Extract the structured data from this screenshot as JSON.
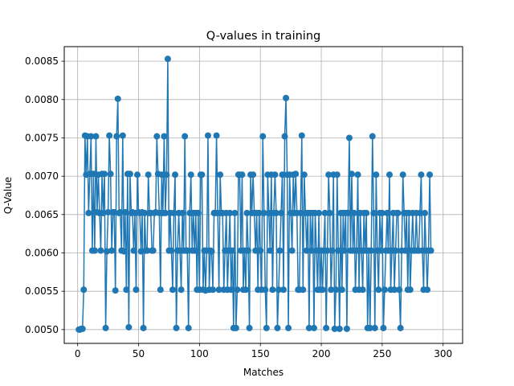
{
  "chart_data": {
    "type": "line",
    "title": "Q-values in training",
    "xlabel": "Matches",
    "ylabel": "Q-Value",
    "xlim": [
      -11,
      316
    ],
    "ylim": [
      0.00482,
      0.00869
    ],
    "grid": true,
    "x_ticks": [
      0,
      50,
      100,
      150,
      200,
      250,
      300
    ],
    "x_tick_labels": [
      "0",
      "50",
      "100",
      "150",
      "200",
      "250",
      "300"
    ],
    "y_ticks": [
      0.005,
      0.0055,
      0.006,
      0.0065,
      0.007,
      0.0075,
      0.008,
      0.0085
    ],
    "y_tick_labels": [
      "0.0050",
      "0.0055",
      "0.0060",
      "0.0065",
      "0.0070",
      "0.0075",
      "0.0080",
      "0.0085"
    ],
    "series_color": "#1f77b4",
    "x_start": 1,
    "values": [
      0.005,
      0.005,
      0.00501,
      0.00501,
      0.00552,
      0.00753,
      0.00702,
      0.00752,
      0.00652,
      0.00703,
      0.00752,
      0.00603,
      0.00703,
      0.00603,
      0.00752,
      0.00653,
      0.00702,
      0.00652,
      0.00603,
      0.00703,
      0.00652,
      0.00703,
      0.00502,
      0.00602,
      0.00653,
      0.00753,
      0.00703,
      0.00603,
      0.00653,
      0.00653,
      0.00551,
      0.00752,
      0.00801,
      0.00652,
      0.00653,
      0.00603,
      0.00753,
      0.00602,
      0.00653,
      0.00552,
      0.00703,
      0.00503,
      0.00703,
      0.00652,
      0.00653,
      0.00603,
      0.00652,
      0.00552,
      0.00702,
      0.00653,
      0.00652,
      0.00602,
      0.00653,
      0.00502,
      0.00652,
      0.00603,
      0.00603,
      0.00702,
      0.00652,
      0.00652,
      0.00603,
      0.00603,
      0.00652,
      0.00653,
      0.00752,
      0.00703,
      0.00652,
      0.00552,
      0.00702,
      0.00652,
      0.00752,
      0.00652,
      0.00702,
      0.00853,
      0.00603,
      0.00652,
      0.00603,
      0.00552,
      0.00652,
      0.00702,
      0.00502,
      0.00603,
      0.00652,
      0.00603,
      0.00552,
      0.00652,
      0.00603,
      0.00752,
      0.00603,
      0.00603,
      0.00502,
      0.00652,
      0.00702,
      0.00603,
      0.00652,
      0.00603,
      0.00652,
      0.00552,
      0.00652,
      0.00552,
      0.00702,
      0.00702,
      0.00552,
      0.00603,
      0.00551,
      0.00603,
      0.00753,
      0.00552,
      0.00603,
      0.00602,
      0.00552,
      0.00652,
      0.00652,
      0.00753,
      0.00652,
      0.00552,
      0.00702,
      0.00652,
      0.00652,
      0.00552,
      0.00603,
      0.00652,
      0.00552,
      0.00603,
      0.00652,
      0.00552,
      0.00603,
      0.00502,
      0.00652,
      0.00502,
      0.00552,
      0.00702,
      0.00702,
      0.00603,
      0.00702,
      0.00552,
      0.00603,
      0.00552,
      0.00652,
      0.00603,
      0.00502,
      0.00702,
      0.00652,
      0.00702,
      0.00652,
      0.00603,
      0.00652,
      0.00552,
      0.00652,
      0.00603,
      0.00552,
      0.00752,
      0.00652,
      0.00552,
      0.00502,
      0.00702,
      0.00652,
      0.00603,
      0.00702,
      0.00552,
      0.00652,
      0.00702,
      0.00652,
      0.00502,
      0.00552,
      0.00603,
      0.00652,
      0.00702,
      0.00552,
      0.00752,
      0.00802,
      0.00702,
      0.00502,
      0.00702,
      0.00652,
      0.00603,
      0.00702,
      0.00652,
      0.00703,
      0.00652,
      0.00552,
      0.00552,
      0.00652,
      0.00753,
      0.00552,
      0.00702,
      0.00652,
      0.00603,
      0.00652,
      0.00502,
      0.00652,
      0.00603,
      0.00652,
      0.00502,
      0.00652,
      0.00603,
      0.00552,
      0.00652,
      0.00552,
      0.00603,
      0.00552,
      0.00603,
      0.00652,
      0.00502,
      0.00603,
      0.00702,
      0.00652,
      0.00552,
      0.00603,
      0.00702,
      0.00501,
      0.00552,
      0.00702,
      0.00603,
      0.00501,
      0.00652,
      0.00552,
      0.00652,
      0.00603,
      0.00652,
      0.00501,
      0.00652,
      0.0075,
      0.00603,
      0.00703,
      0.00603,
      0.00652,
      0.00552,
      0.00603,
      0.00702,
      0.00552,
      0.00652,
      0.00603,
      0.00552,
      0.00652,
      0.00603,
      0.00652,
      0.00502,
      0.00603,
      0.00502,
      0.00603,
      0.00752,
      0.00652,
      0.00502,
      0.00702,
      0.00603,
      0.00552,
      0.00652,
      0.00603,
      0.00652,
      0.00502,
      0.00552,
      0.00603,
      0.00652,
      0.00603,
      0.00702,
      0.00552,
      0.00603,
      0.00652,
      0.00552,
      0.00603,
      0.00652,
      0.00652,
      0.00552,
      0.00502,
      0.00603,
      0.00702,
      0.00652,
      0.00603,
      0.00652,
      0.00552,
      0.00652,
      0.00552,
      0.00603,
      0.00652,
      0.00603,
      0.00603,
      0.00652,
      0.00603,
      0.00603,
      0.00652,
      0.00702,
      0.00603,
      0.00552,
      0.00652,
      0.00603,
      0.00552,
      0.00603,
      0.00702,
      0.00603
    ]
  }
}
